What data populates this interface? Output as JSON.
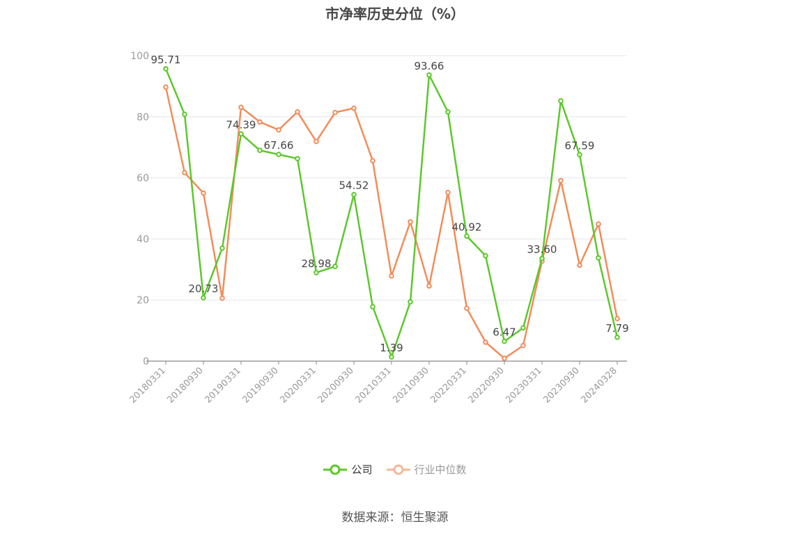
{
  "title": "市净率历史分位（%）",
  "source": "数据来源：恒生聚源",
  "colors": {
    "company": "#5cc82a",
    "industry": "#f28c5a",
    "industry_legend": "#f5b79a",
    "axis": "#999999",
    "grid": "#e6e6ec"
  },
  "chart_data": {
    "type": "line",
    "title": "市净率历史分位（%）",
    "x": [
      "20180331",
      "20180630",
      "20180930",
      "20181231",
      "20190331",
      "20190630",
      "20190930",
      "20191231",
      "20200331",
      "20200630",
      "20200930",
      "20201231",
      "20210331",
      "20210630",
      "20210930",
      "20211231",
      "20220331",
      "20220630",
      "20220930",
      "20221231",
      "20230331",
      "20230630",
      "20230930",
      "20231231",
      "20240328"
    ],
    "x_tick_labels": [
      "20180331",
      "20180930",
      "20190331",
      "20190930",
      "20200331",
      "20200930",
      "20210331",
      "20210930",
      "20220331",
      "20220930",
      "20230331",
      "20230930",
      "20240328"
    ],
    "ylim": [
      0,
      100
    ],
    "y_ticks": [
      0,
      20,
      40,
      60,
      80,
      100
    ],
    "grid": true,
    "legend_position": "bottom",
    "series": [
      {
        "name": "公司",
        "values": [
          95.71,
          80.8,
          20.73,
          37.0,
          74.39,
          69.0,
          67.66,
          66.3,
          28.98,
          31.0,
          54.52,
          17.8,
          1.39,
          19.4,
          93.66,
          81.6,
          40.92,
          34.5,
          6.47,
          10.9,
          33.6,
          85.2,
          67.59,
          33.8,
          7.79
        ]
      },
      {
        "name": "行业中位数",
        "values": [
          89.7,
          61.7,
          55.0,
          20.6,
          83.1,
          78.3,
          75.7,
          81.6,
          71.9,
          81.4,
          82.8,
          65.6,
          27.9,
          45.6,
          24.6,
          55.2,
          17.3,
          6.2,
          0.9,
          5.1,
          32.7,
          59.1,
          31.4,
          44.9,
          13.9
        ]
      }
    ],
    "annotations": [
      {
        "series": 0,
        "index": 0,
        "label": "95.71"
      },
      {
        "series": 0,
        "index": 2,
        "label": "20.73"
      },
      {
        "series": 0,
        "index": 4,
        "label": "74.39"
      },
      {
        "series": 0,
        "index": 6,
        "label": "67.66"
      },
      {
        "series": 0,
        "index": 8,
        "label": "28.98"
      },
      {
        "series": 0,
        "index": 10,
        "label": "54.52"
      },
      {
        "series": 0,
        "index": 12,
        "label": "1.39"
      },
      {
        "series": 0,
        "index": 14,
        "label": "93.66"
      },
      {
        "series": 0,
        "index": 16,
        "label": "40.92"
      },
      {
        "series": 0,
        "index": 18,
        "label": "6.47"
      },
      {
        "series": 0,
        "index": 20,
        "label": "33.60"
      },
      {
        "series": 0,
        "index": 22,
        "label": "67.59"
      },
      {
        "series": 0,
        "index": 24,
        "label": "7.79"
      }
    ]
  }
}
